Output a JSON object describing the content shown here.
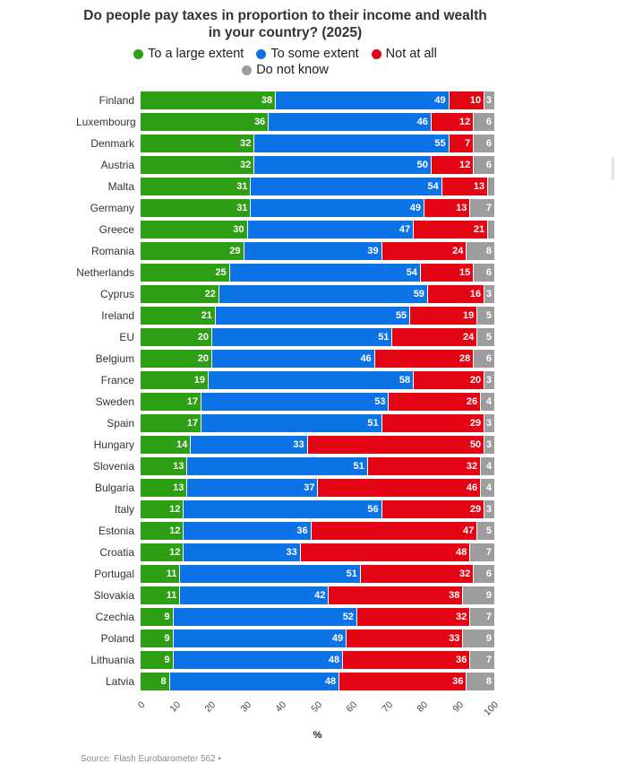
{
  "title": "Do people pay taxes in proportion to their income and wealth in your country? (2025)",
  "xlabel": "%",
  "source": "Source: Flash Eurobarometer 562 •",
  "colors": {
    "to_a_large_extent": "#2e9e14",
    "to_some_extent": "#0b73e6",
    "not_at_all": "#e30513",
    "do_not_know": "#9d9d9d"
  },
  "legend": [
    {
      "label": "To a large extent",
      "color": "#2e9e14"
    },
    {
      "label": "To some extent",
      "color": "#0b73e6"
    },
    {
      "label": "Not at all",
      "color": "#e30513"
    },
    {
      "label": "Do not know",
      "color": "#9d9d9d"
    }
  ],
  "chart_data": {
    "type": "bar",
    "orientation": "horizontal",
    "stacked": true,
    "title": "Do people pay taxes in proportion to their income and wealth in your country? (2025)",
    "xlabel": "%",
    "xlim": [
      0,
      100
    ],
    "xticks": [
      "0",
      "10",
      "20",
      "30",
      "40",
      "50",
      "60",
      "70",
      "80",
      "90",
      "100"
    ],
    "grid": false,
    "legend_position": "top",
    "value_label_min": 3,
    "categories": [
      "Finland",
      "Luxembourg",
      "Denmark",
      "Austria",
      "Malta",
      "Germany",
      "Greece",
      "Romania",
      "Netherlands",
      "Cyprus",
      "Ireland",
      "EU",
      "Belgium",
      "France",
      "Sweden",
      "Spain",
      "Hungary",
      "Slovenia",
      "Bulgaria",
      "Italy",
      "Estonia",
      "Croatia",
      "Portugal",
      "Slovakia",
      "Czechia",
      "Poland",
      "Lithuania",
      "Latvia"
    ],
    "series": [
      {
        "name": "To a large extent",
        "slug": "to-a-large-extent",
        "color": "#2e9e14",
        "values": [
          38,
          36,
          32,
          32,
          31,
          31,
          30,
          29,
          25,
          22,
          21,
          20,
          20,
          19,
          17,
          17,
          14,
          13,
          13,
          12,
          12,
          12,
          11,
          11,
          9,
          9,
          9,
          8
        ]
      },
      {
        "name": "To some extent",
        "slug": "to-some-extent",
        "color": "#0b73e6",
        "values": [
          49,
          46,
          55,
          50,
          54,
          49,
          47,
          39,
          54,
          59,
          55,
          51,
          46,
          58,
          53,
          51,
          33,
          51,
          37,
          56,
          36,
          33,
          51,
          42,
          52,
          49,
          48,
          48
        ]
      },
      {
        "name": "Not at all",
        "slug": "not-at-all",
        "color": "#e30513",
        "values": [
          10,
          12,
          7,
          12,
          13,
          13,
          21,
          24,
          15,
          16,
          19,
          24,
          28,
          20,
          26,
          29,
          50,
          32,
          46,
          29,
          47,
          48,
          32,
          38,
          32,
          33,
          36,
          36
        ]
      },
      {
        "name": "Do not know",
        "slug": "do-not-know",
        "color": "#9d9d9d",
        "values": [
          3,
          6,
          6,
          6,
          2,
          7,
          2,
          8,
          6,
          3,
          5,
          5,
          6,
          3,
          4,
          3,
          3,
          4,
          4,
          3,
          5,
          7,
          6,
          9,
          7,
          9,
          7,
          8
        ]
      }
    ]
  }
}
